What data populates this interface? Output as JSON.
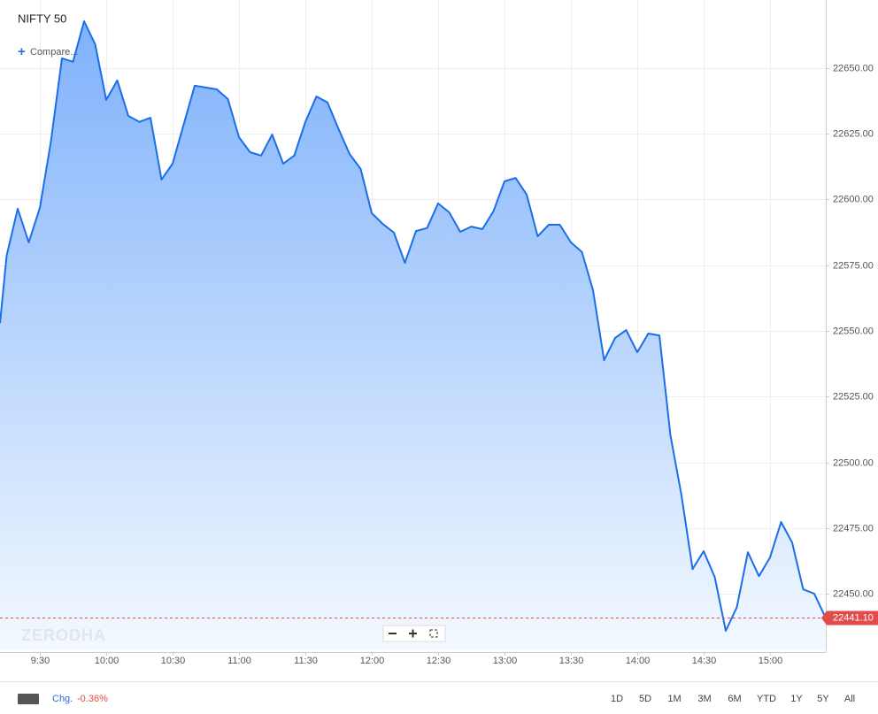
{
  "chart_data": {
    "type": "area",
    "title": "NIFTY 50",
    "series": [
      {
        "name": "NIFTY 50",
        "color": "#1a6fe8",
        "x": [
          552,
          555,
          560,
          565,
          570,
          575,
          580,
          585,
          590,
          595,
          600,
          605,
          610,
          615,
          620,
          625,
          630,
          635,
          640,
          645,
          650,
          655,
          660,
          665,
          670,
          675,
          680,
          685,
          690,
          695,
          700,
          705,
          710,
          715,
          720,
          725,
          730,
          735,
          740,
          745,
          750,
          755,
          760,
          765,
          770,
          775,
          780,
          785,
          790,
          795,
          800,
          805,
          810,
          815,
          820,
          825,
          830,
          835,
          840,
          845,
          850,
          855,
          860,
          865,
          870,
          875,
          880,
          885,
          890,
          895,
          900,
          905,
          910,
          915,
          920,
          925
        ],
        "values": [
          22553,
          22578.6,
          22596.5,
          22583.7,
          22596.8,
          22622,
          22653.7,
          22652.4,
          22667.8,
          22659.1,
          22637.9,
          22645.3,
          22631.8,
          22629.5,
          22631.1,
          22607.6,
          22613.6,
          22628.5,
          22643.3,
          22642.6,
          22641.9,
          22638.2,
          22623.7,
          22618,
          22616.7,
          22624.7,
          22613.6,
          22616.7,
          22629.5,
          22639.2,
          22636.9,
          22626.8,
          22617.3,
          22611.6,
          22594.8,
          22590.7,
          22587.4,
          22575.9,
          22588,
          22589.1,
          22598.5,
          22595.1,
          22587.7,
          22589.7,
          22588.7,
          22595.5,
          22606.9,
          22608.2,
          22601.9,
          22586,
          22590.4,
          22590.4,
          22583.7,
          22580,
          22565.5,
          22538.9,
          22547.3,
          22550.3,
          22541.9,
          22549,
          22548.3,
          22510.3,
          22487.4,
          22459.4,
          22466.2,
          22456.4,
          22435.9,
          22444.9,
          22465.8,
          22456.7,
          22463.8,
          22477.3,
          22469.5,
          22451.7,
          22450,
          22441.1
        ],
        "value_labels": [
          null,
          null,
          null,
          null,
          null,
          null,
          null,
          null,
          null,
          null,
          null,
          null,
          null,
          null,
          null,
          null,
          null,
          null,
          null,
          null,
          null,
          null,
          null,
          null,
          null,
          null,
          null,
          null,
          null,
          null,
          null,
          null,
          null,
          null,
          null,
          null,
          null,
          null,
          null,
          null,
          null,
          null,
          null,
          null,
          null,
          null,
          null,
          null,
          null,
          null,
          null,
          null,
          null,
          null,
          null,
          null,
          null,
          null,
          null,
          null,
          null,
          null,
          null,
          null,
          null,
          null,
          null,
          null,
          null,
          null,
          null,
          null,
          null,
          null,
          null,
          "22441.10"
        ]
      }
    ],
    "xlim": [
      552,
      925.2
    ],
    "xticks": [
      {
        "value": 570,
        "label": "9:30"
      },
      {
        "value": 600,
        "label": "10:00"
      },
      {
        "value": 630,
        "label": "10:30"
      },
      {
        "value": 660,
        "label": "11:00"
      },
      {
        "value": 690,
        "label": "11:30"
      },
      {
        "value": 720,
        "label": "12:00"
      },
      {
        "value": 750,
        "label": "12:30"
      },
      {
        "value": 780,
        "label": "13:00"
      },
      {
        "value": 810,
        "label": "13:30"
      },
      {
        "value": 840,
        "label": "14:00"
      },
      {
        "value": 870,
        "label": "14:30"
      },
      {
        "value": 900,
        "label": "15:00"
      }
    ],
    "ylim": [
      22428.5,
      22674.2
    ],
    "yticks": [
      {
        "value": 22450,
        "label": "22450.00"
      },
      {
        "value": 22475,
        "label": "22475.00"
      },
      {
        "value": 22500,
        "label": "22500.00"
      },
      {
        "value": 22525,
        "label": "22525.00"
      },
      {
        "value": 22550,
        "label": "22550.00"
      },
      {
        "value": 22575,
        "label": "22575.00"
      },
      {
        "value": 22600,
        "label": "22600.00"
      },
      {
        "value": 22625,
        "label": "22625.00"
      },
      {
        "value": 22650,
        "label": "22650.00"
      }
    ],
    "grid": true
  },
  "ui": {
    "compare": "Compare...",
    "watermark": "ZERODHA",
    "change_label": "Chg.",
    "change": "-0.36%",
    "ranges": [
      "1D",
      "5D",
      "1M",
      "3M",
      "6M",
      "YTD",
      "1Y",
      "5Y",
      "All"
    ]
  }
}
